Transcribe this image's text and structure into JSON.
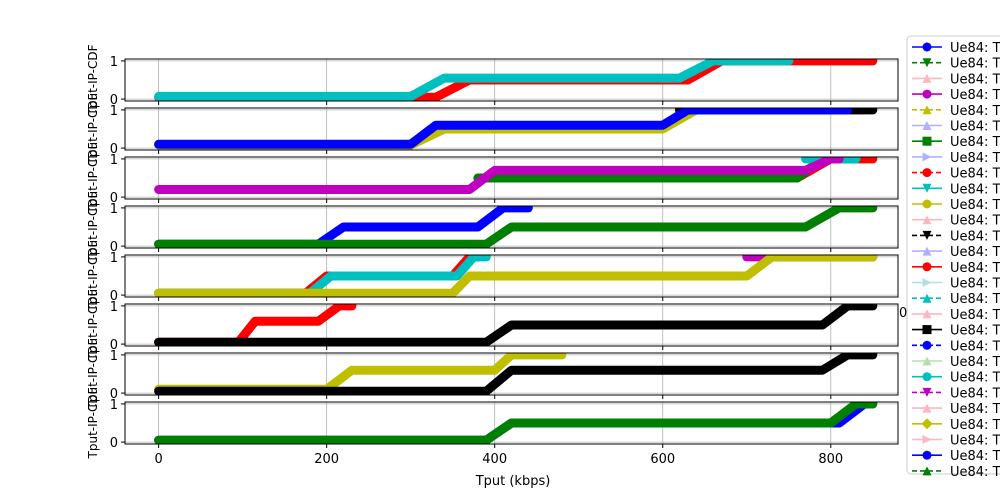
{
  "chart_data": {
    "type": "line",
    "xlabel": "Tput (kbps)",
    "x_ticks": [
      "0",
      "200",
      "400",
      "600",
      "800"
    ],
    "x_ticks_partial": [
      "0"
    ],
    "y_ticks": [
      "0",
      "1"
    ],
    "xlim": [
      -40,
      880
    ],
    "ylim": [
      -0.05,
      1.05
    ],
    "grid": true,
    "legend_placement": "right, outside",
    "panels": [
      {
        "ylabel": "Tput-IP-CDF",
        "series": [
          {
            "color": "#ff0000",
            "marker": "triangle-left",
            "steps": [
              [
                0,
                0.05
              ],
              [
                330,
                0.05
              ],
              [
                370,
                0.5
              ],
              [
                630,
                0.5
              ],
              [
                670,
                1.0
              ],
              [
                850,
                1.0
              ]
            ]
          },
          {
            "color": "#00bfbf",
            "marker": "circle",
            "steps": [
              [
                0,
                0.07
              ],
              [
                300,
                0.07
              ],
              [
                340,
                0.55
              ],
              [
                620,
                0.55
              ],
              [
                660,
                1.0
              ],
              [
                750,
                1.0
              ]
            ]
          }
        ]
      },
      {
        "ylabel": "Tput-IP-CDF",
        "series": [
          {
            "color": "#bfbf00",
            "marker": "triangle-up",
            "steps": [
              [
                0,
                0.08
              ],
              [
                300,
                0.08
              ],
              [
                340,
                0.5
              ],
              [
                600,
                0.5
              ],
              [
                640,
                1.0
              ],
              [
                840,
                1.0
              ]
            ]
          },
          {
            "color": "#000000",
            "marker": "triangle-down",
            "steps": [
              [
                620,
                1.0
              ],
              [
                850,
                1.0
              ]
            ]
          },
          {
            "color": "#0000ff",
            "marker": "circle",
            "steps": [
              [
                0,
                0.1
              ],
              [
                300,
                0.1
              ],
              [
                330,
                0.6
              ],
              [
                600,
                0.6
              ],
              [
                630,
                1.0
              ],
              [
                820,
                1.0
              ]
            ]
          }
        ]
      },
      {
        "ylabel": "Tput-IP-CDF",
        "series": [
          {
            "color": "#ff0000",
            "marker": "circle",
            "steps": [
              [
                380,
                0.5
              ],
              [
                400,
                0.5
              ],
              [
                760,
                0.5
              ],
              [
                800,
                1.0
              ],
              [
                850,
                1.0
              ]
            ]
          },
          {
            "color": "#008000",
            "marker": "square",
            "steps": [
              [
                380,
                0.5
              ],
              [
                400,
                0.5
              ],
              [
                760,
                0.5
              ],
              [
                790,
                1.0
              ],
              [
                830,
                1.0
              ]
            ]
          },
          {
            "color": "#00bfbf",
            "marker": "circle",
            "steps": [
              [
                770,
                1.0
              ],
              [
                830,
                1.0
              ]
            ]
          },
          {
            "color": "#bf00bf",
            "marker": "circle",
            "steps": [
              [
                0,
                0.2
              ],
              [
                370,
                0.2
              ],
              [
                400,
                0.7
              ],
              [
                770,
                0.7
              ],
              [
                800,
                1.0
              ],
              [
                810,
                1.0
              ]
            ]
          }
        ]
      },
      {
        "ylabel": "Tput-IP-CDF",
        "series": [
          {
            "color": "#0000ff",
            "marker": "circle",
            "steps": [
              [
                0,
                0.05
              ],
              [
                190,
                0.05
              ],
              [
                220,
                0.5
              ],
              [
                380,
                0.5
              ],
              [
                410,
                1.0
              ],
              [
                440,
                1.0
              ]
            ]
          },
          {
            "color": "#008000",
            "marker": "square",
            "steps": [
              [
                0,
                0.05
              ],
              [
                390,
                0.05
              ],
              [
                420,
                0.5
              ],
              [
                770,
                0.5
              ],
              [
                810,
                1.0
              ],
              [
                850,
                1.0
              ]
            ]
          }
        ]
      },
      {
        "ylabel": "Tput-IP-CDF",
        "series": [
          {
            "color": "#ff0000",
            "marker": "circle",
            "steps": [
              [
                0,
                0.05
              ],
              [
                175,
                0.05
              ],
              [
                200,
                0.5
              ],
              [
                350,
                0.5
              ],
              [
                370,
                1.0
              ],
              [
                380,
                1.0
              ]
            ]
          },
          {
            "color": "#00bfbf",
            "marker": "square",
            "steps": [
              [
                0,
                0.05
              ],
              [
                180,
                0.05
              ],
              [
                205,
                0.5
              ],
              [
                355,
                0.5
              ],
              [
                375,
                1.0
              ],
              [
                390,
                1.0
              ]
            ]
          },
          {
            "color": "#bf00bf",
            "marker": "circle",
            "steps": [
              [
                700,
                1.0
              ],
              [
                850,
                1.0
              ]
            ]
          },
          {
            "color": "#bfbf00",
            "marker": "circle",
            "steps": [
              [
                0,
                0.05
              ],
              [
                350,
                0.05
              ],
              [
                370,
                0.5
              ],
              [
                700,
                0.5
              ],
              [
                730,
                1.0
              ],
              [
                850,
                1.0
              ]
            ]
          }
        ]
      },
      {
        "ylabel": "Tput-IP-CDF",
        "series": [
          {
            "color": "#ff0000",
            "marker": "circle",
            "steps": [
              [
                0,
                0.05
              ],
              [
                95,
                0.05
              ],
              [
                115,
                0.6
              ],
              [
                190,
                0.6
              ],
              [
                215,
                1.0
              ],
              [
                230,
                1.0
              ]
            ]
          },
          {
            "color": "#000000",
            "marker": "square",
            "steps": [
              [
                0,
                0.05
              ],
              [
                390,
                0.05
              ],
              [
                420,
                0.5
              ],
              [
                790,
                0.5
              ],
              [
                820,
                1.0
              ],
              [
                850,
                1.0
              ]
            ]
          }
        ]
      },
      {
        "ylabel": "Tput-IP-CDF",
        "series": [
          {
            "color": "#bfbf00",
            "marker": "diamond",
            "steps": [
              [
                0,
                0.1
              ],
              [
                200,
                0.1
              ],
              [
                230,
                0.6
              ],
              [
                400,
                0.6
              ],
              [
                420,
                1.0
              ],
              [
                480,
                1.0
              ]
            ]
          },
          {
            "color": "#000000",
            "marker": "square",
            "steps": [
              [
                0,
                0.05
              ],
              [
                390,
                0.05
              ],
              [
                420,
                0.6
              ],
              [
                790,
                0.6
              ],
              [
                820,
                1.0
              ],
              [
                850,
                1.0
              ]
            ]
          }
        ]
      },
      {
        "ylabel": "Tput-IP-CDF",
        "series": [
          {
            "color": "#0000ff",
            "marker": "circle",
            "steps": [
              [
                0,
                0.05
              ],
              [
                390,
                0.05
              ],
              [
                420,
                0.5
              ],
              [
                810,
                0.5
              ],
              [
                840,
                1.0
              ],
              [
                850,
                1.0
              ]
            ]
          },
          {
            "color": "#008000",
            "marker": "triangle-up",
            "steps": [
              [
                0,
                0.05
              ],
              [
                390,
                0.05
              ],
              [
                420,
                0.5
              ],
              [
                800,
                0.5
              ],
              [
                830,
                1.0
              ],
              [
                850,
                1.0
              ]
            ]
          }
        ]
      }
    ],
    "legend": [
      {
        "label": "Ue84: T",
        "color": "#0000ff",
        "marker": "circle",
        "dash": false
      },
      {
        "label": "Ue84: T",
        "color": "#008000",
        "marker": "triangle-down",
        "dash": true
      },
      {
        "label": "Ue84: T",
        "color": "#ffb6c1",
        "marker": "triangle-up",
        "dash": false
      },
      {
        "label": "Ue84: T",
        "color": "#bf00bf",
        "marker": "circle",
        "dash": false
      },
      {
        "label": "Ue84: T",
        "color": "#bfbf00",
        "marker": "triangle-up",
        "dash": true
      },
      {
        "label": "Ue84: T",
        "color": "#b0b0ff",
        "marker": "triangle-up",
        "dash": false
      },
      {
        "label": "Ue84: T",
        "color": "#008000",
        "marker": "square",
        "dash": false
      },
      {
        "label": "Ue84: T",
        "color": "#b0b0ff",
        "marker": "triangle-right",
        "dash": false
      },
      {
        "label": "Ue84: T",
        "color": "#ff0000",
        "marker": "circle",
        "dash": true
      },
      {
        "label": "Ue84: T",
        "color": "#00bfbf",
        "marker": "triangle-down",
        "dash": false
      },
      {
        "label": "Ue84: T",
        "color": "#bfbf00",
        "marker": "circle",
        "dash": false
      },
      {
        "label": "Ue84: T",
        "color": "#ffb6c1",
        "marker": "triangle-up",
        "dash": false
      },
      {
        "label": "Ue84: T",
        "color": "#000000",
        "marker": "triangle-down",
        "dash": true
      },
      {
        "label": "Ue84: T",
        "color": "#b0b0ff",
        "marker": "triangle-up",
        "dash": false
      },
      {
        "label": "Ue84: T",
        "color": "#ff0000",
        "marker": "circle",
        "dash": false
      },
      {
        "label": "Ue84: T",
        "color": "#b0e0e0",
        "marker": "triangle-right",
        "dash": false
      },
      {
        "label": "Ue84: T",
        "color": "#00bfbf",
        "marker": "triangle-up",
        "dash": true
      },
      {
        "label": "Ue84: T",
        "color": "#ffb6c1",
        "marker": "triangle-up",
        "dash": false
      },
      {
        "label": "Ue84: T",
        "color": "#000000",
        "marker": "square",
        "dash": false
      },
      {
        "label": "Ue84: T",
        "color": "#0000ff",
        "marker": "circle",
        "dash": true
      },
      {
        "label": "Ue84: T",
        "color": "#b0e0b0",
        "marker": "triangle-up",
        "dash": false
      },
      {
        "label": "Ue84: T",
        "color": "#00bfbf",
        "marker": "circle",
        "dash": false
      },
      {
        "label": "Ue84: T",
        "color": "#bf00bf",
        "marker": "triangle-down",
        "dash": true
      },
      {
        "label": "Ue84: T",
        "color": "#ffb6c1",
        "marker": "triangle-up",
        "dash": false
      },
      {
        "label": "Ue84: T",
        "color": "#bfbf00",
        "marker": "diamond",
        "dash": false
      },
      {
        "label": "Ue84: T",
        "color": "#ffb6c1",
        "marker": "triangle-right",
        "dash": false
      },
      {
        "label": "Ue84: T",
        "color": "#0000ff",
        "marker": "circle",
        "dash": false
      },
      {
        "label": "Ue84: T",
        "color": "#008000",
        "marker": "triangle-up",
        "dash": true
      }
    ]
  }
}
